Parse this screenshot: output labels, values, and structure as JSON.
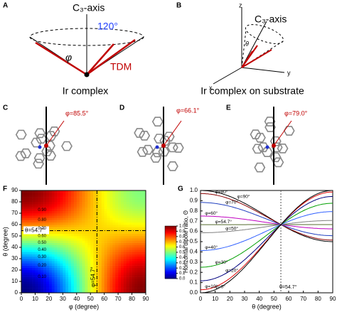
{
  "panels": {
    "A": {
      "label": "A",
      "axis": "C₃-axis",
      "angle": "120°",
      "phi": "φ",
      "tdm": "TDM",
      "caption": "Ir complex"
    },
    "B": {
      "label": "B",
      "axis": "C₃-axis",
      "theta": "θ",
      "z": "z",
      "y": "y",
      "x": "x",
      "caption": "Ir complex on substrate"
    },
    "C": {
      "label": "C",
      "annotation": "φ=85.5°"
    },
    "D": {
      "label": "D",
      "annotation": "φ=66.1°"
    },
    "E": {
      "label": "E",
      "annotation": "φ=79.0°"
    },
    "F": {
      "label": "F",
      "x_label": "φ (degree)",
      "y_label": "θ (degree)",
      "xlim": [
        0,
        90
      ],
      "ylim": [
        0,
        90
      ],
      "xticks": [
        0,
        10,
        20,
        30,
        40,
        50,
        60,
        70,
        80,
        90
      ],
      "yticks": [
        0,
        10,
        20,
        30,
        40,
        50,
        60,
        70,
        80,
        90
      ],
      "theta_line": "θ=54.7°",
      "phi_line": "φ=54.7°",
      "colorbar_ticks": [
        {
          "value": 0,
          "label": "0.0"
        },
        {
          "value": 0.1,
          "label": "0.1"
        },
        {
          "value": 0.2,
          "label": "0.2"
        },
        {
          "value": 0.3,
          "label": "0.3"
        },
        {
          "value": 0.4,
          "label": "0.4"
        },
        {
          "value": 0.5,
          "label": "0.5"
        },
        {
          "value": 0.6,
          "label": "0.6"
        },
        {
          "value": 0.7,
          "label": "0.7"
        },
        {
          "value": 0.8,
          "label": "0.8"
        },
        {
          "value": 0.9,
          "label": "0.9"
        },
        {
          "value": 1,
          "label": "1.0"
        }
      ],
      "contour_labels": [
        "0.90",
        "0.80",
        "0.70",
        "0.60",
        "0.50",
        "0.40",
        "0.30",
        "0.20",
        "0.10"
      ]
    },
    "G": {
      "label": "G",
      "x_label": "θ (degree)",
      "y_label": "Horizontal dipole ratio, Θ",
      "xlim": [
        0,
        90
      ],
      "ylim": [
        0,
        1
      ],
      "xticks": [
        0,
        10,
        20,
        30,
        40,
        50,
        60,
        70,
        80,
        90
      ],
      "yticks": [
        {
          "value": 0,
          "label": "0.0"
        },
        {
          "value": 0.1,
          "label": "0.1"
        },
        {
          "value": 0.2,
          "label": "0.2"
        },
        {
          "value": 0.3,
          "label": "0.3"
        },
        {
          "value": 0.4,
          "label": "0.4"
        },
        {
          "value": 0.5,
          "label": "0.5"
        },
        {
          "value": 0.6,
          "label": "0.6"
        },
        {
          "value": 0.7,
          "label": "0.7"
        },
        {
          "value": 0.8,
          "label": "0.8"
        },
        {
          "value": 0.9,
          "label": "0.9"
        },
        {
          "value": 1,
          "label": "1.0"
        }
      ],
      "marker": "θ=54.7°",
      "curves": [
        {
          "name": "φ=90°",
          "color": "#000000"
        },
        {
          "name": "φ=80°",
          "color": "#8b0000"
        },
        {
          "name": "φ=70°",
          "color": "#1f3fbf"
        },
        {
          "name": "φ=60°",
          "color": "#c000c0"
        },
        {
          "name": "φ=54.7°",
          "color": "#556b2f"
        },
        {
          "name": "φ=50°",
          "color": "#808080"
        },
        {
          "name": "φ=40°",
          "color": "#3060ff"
        },
        {
          "name": "φ=30°",
          "color": "#00a000"
        },
        {
          "name": "φ=20°",
          "color": "#000080"
        },
        {
          "name": "φ=10°",
          "color": "#e00000"
        },
        {
          "name": "φ=0°",
          "color": "#000000"
        }
      ]
    }
  }
}
